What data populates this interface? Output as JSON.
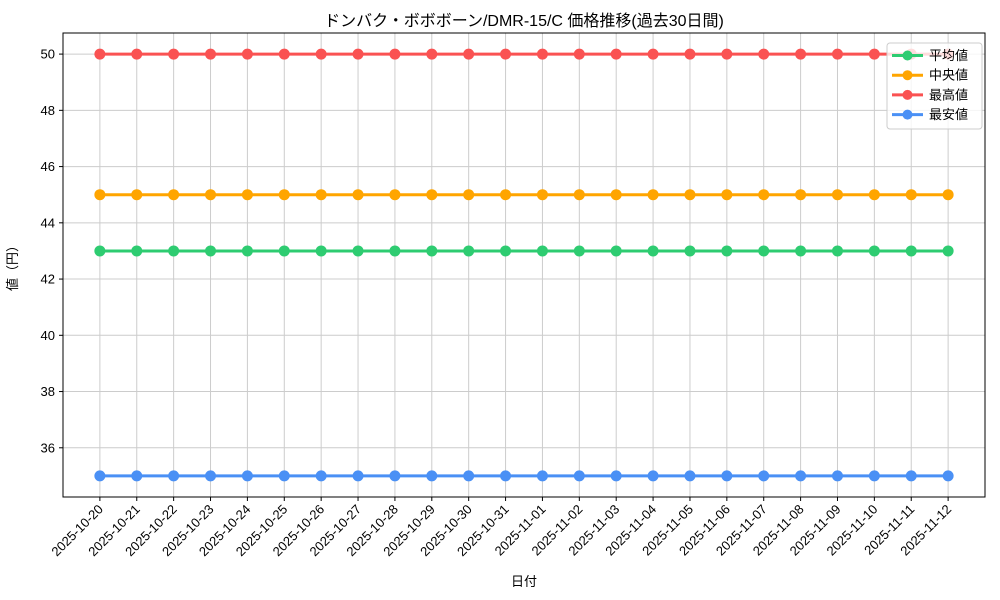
{
  "figure": {
    "title": "ドンバク・ボボボーン/DMR-15/C 価格推移(過去30日間)",
    "xlabel": "日付",
    "ylabel": "値（円）"
  },
  "chart_data": {
    "type": "line",
    "title": "ドンバク・ボボボーン/DMR-15/C 価格推移(過去30日間)",
    "xlabel": "日付",
    "ylabel": "値（円）",
    "categories": [
      "2025-10-20",
      "2025-10-21",
      "2025-10-22",
      "2025-10-23",
      "2025-10-24",
      "2025-10-25",
      "2025-10-26",
      "2025-10-27",
      "2025-10-28",
      "2025-10-29",
      "2025-10-30",
      "2025-10-31",
      "2025-11-01",
      "2025-11-02",
      "2025-11-03",
      "2025-11-04",
      "2025-11-05",
      "2025-11-06",
      "2025-11-07",
      "2025-11-08",
      "2025-11-09",
      "2025-11-10",
      "2025-11-11",
      "2025-11-12"
    ],
    "series": [
      {
        "key": "average",
        "name": "平均値",
        "color": "#2ecc71",
        "values": [
          43,
          43,
          43,
          43,
          43,
          43,
          43,
          43,
          43,
          43,
          43,
          43,
          43,
          43,
          43,
          43,
          43,
          43,
          43,
          43,
          43,
          43,
          43,
          43
        ]
      },
      {
        "key": "median",
        "name": "中央値",
        "color": "#ffa500",
        "values": [
          45,
          45,
          45,
          45,
          45,
          45,
          45,
          45,
          45,
          45,
          45,
          45,
          45,
          45,
          45,
          45,
          45,
          45,
          45,
          45,
          45,
          45,
          45,
          45
        ]
      },
      {
        "key": "max",
        "name": "最高値",
        "color": "#fa5252",
        "values": [
          50,
          50,
          50,
          50,
          50,
          50,
          50,
          50,
          50,
          50,
          50,
          50,
          50,
          50,
          50,
          50,
          50,
          50,
          50,
          50,
          50,
          50,
          50,
          50
        ]
      },
      {
        "key": "min",
        "name": "最安値",
        "color": "#4a90f5",
        "values": [
          35,
          35,
          35,
          35,
          35,
          35,
          35,
          35,
          35,
          35,
          35,
          35,
          35,
          35,
          35,
          35,
          35,
          35,
          35,
          35,
          35,
          35,
          35,
          35
        ]
      }
    ],
    "yticks": [
      36,
      38,
      40,
      42,
      44,
      46,
      48,
      50
    ],
    "ylim": [
      34.25,
      50.75
    ],
    "grid": true,
    "legend_position": "upper right",
    "legend": [
      "平均値",
      "中央値",
      "最高値",
      "最安値"
    ]
  },
  "style_colors": {
    "grid": "#cccccc",
    "spine": "#000000",
    "tick": "#000000",
    "legend_border": "#cccccc",
    "legend_background": "rgba(255,255,255,0.8)"
  }
}
